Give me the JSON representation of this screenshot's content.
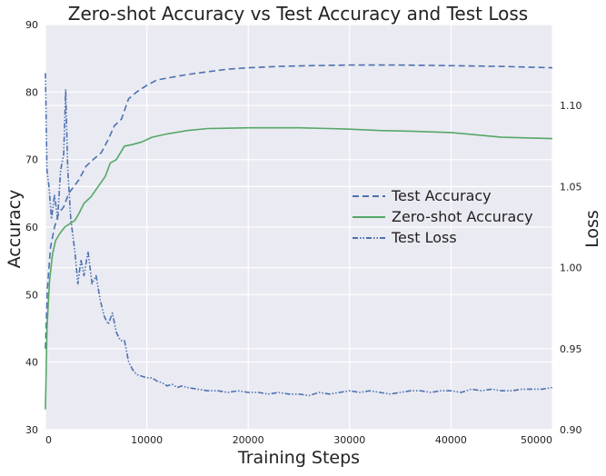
{
  "chart_data": {
    "type": "line",
    "title": "Zero-shot Accuracy vs Test Accuracy and Test Loss",
    "xlabel": "Training Steps",
    "ylabel": "Accuracy",
    "ylabel_right": "Loss",
    "xlim": [
      0,
      50000
    ],
    "ylim": [
      30,
      90
    ],
    "ylim_right": [
      0.9,
      1.15
    ],
    "x_ticks": [
      "0",
      "10000",
      "20000",
      "30000",
      "40000",
      "50000"
    ],
    "y_ticks": [
      "30",
      "40",
      "50",
      "60",
      "70",
      "80",
      "90"
    ],
    "y_right_ticks": [
      "0.90",
      "0.95",
      "1.00",
      "1.05",
      "1.10"
    ],
    "grid": true,
    "legend_position": "center-right",
    "series": [
      {
        "name": "Test Accuracy",
        "axis": "left",
        "color": "#4C72B0",
        "style": "dashed",
        "x": [
          0,
          200,
          500,
          900,
          1300,
          1800,
          2300,
          2800,
          3300,
          4000,
          4700,
          5500,
          6200,
          6800,
          7500,
          8200,
          9000,
          10000,
          11000,
          12500,
          14000,
          16000,
          18000,
          20000,
          23000,
          26000,
          30000,
          35000,
          40000,
          45000,
          50000
        ],
        "y": [
          42,
          51,
          57,
          60,
          62,
          63,
          65,
          66,
          67,
          69,
          70,
          71,
          73,
          75,
          76,
          79,
          80,
          81,
          81.8,
          82.2,
          82.6,
          83.0,
          83.4,
          83.6,
          83.8,
          83.9,
          84.0,
          84.0,
          83.9,
          83.8,
          83.6
        ]
      },
      {
        "name": "Zero-shot Accuracy",
        "axis": "left",
        "color": "#55A868",
        "style": "solid",
        "x": [
          0,
          150,
          400,
          700,
          1000,
          1400,
          1900,
          2400,
          2900,
          3300,
          3800,
          4500,
          5200,
          5900,
          6400,
          7000,
          7800,
          8500,
          9500,
          10500,
          12000,
          14000,
          16000,
          20000,
          25000,
          28000,
          30000,
          33000,
          36000,
          40000,
          45000,
          50000
        ],
        "y": [
          33,
          45,
          52,
          56,
          58,
          59,
          60,
          60.5,
          61,
          62,
          63.5,
          64.5,
          66,
          67.5,
          69.5,
          70,
          72,
          72.2,
          72.6,
          73.3,
          73.8,
          74.3,
          74.6,
          74.7,
          74.7,
          74.6,
          74.5,
          74.3,
          74.2,
          74.0,
          73.3,
          73.1
        ]
      },
      {
        "name": "Test Loss",
        "axis": "right",
        "color": "#4C72B0",
        "style": "dashdot",
        "x": [
          0,
          150,
          350,
          600,
          900,
          1200,
          1500,
          1800,
          2000,
          2200,
          2500,
          2900,
          3200,
          3500,
          3800,
          4200,
          4600,
          5000,
          5400,
          5800,
          6200,
          6600,
          7000,
          7400,
          7800,
          8200,
          8600,
          9000,
          9500,
          10000,
          10500,
          11000,
          11500,
          12000,
          12500,
          13000,
          13500,
          14000,
          15000,
          16000,
          17000,
          18000,
          19000,
          20000,
          21000,
          22000,
          23000,
          24000,
          25000,
          26000,
          27000,
          28000,
          29000,
          30000,
          31000,
          32000,
          33000,
          34000,
          35000,
          36000,
          37000,
          38000,
          39000,
          40000,
          41000,
          42000,
          43000,
          44000,
          45000,
          46000,
          47000,
          48000,
          49000,
          50000
        ],
        "y": [
          1.12,
          1.06,
          1.05,
          1.03,
          1.045,
          1.03,
          1.06,
          1.07,
          1.11,
          1.06,
          1.03,
          1.01,
          0.99,
          1.005,
          0.995,
          1.01,
          0.99,
          0.995,
          0.98,
          0.97,
          0.965,
          0.972,
          0.96,
          0.955,
          0.955,
          0.942,
          0.937,
          0.934,
          0.933,
          0.932,
          0.932,
          0.93,
          0.929,
          0.927,
          0.928,
          0.926,
          0.927,
          0.926,
          0.925,
          0.924,
          0.924,
          0.923,
          0.924,
          0.923,
          0.923,
          0.922,
          0.923,
          0.922,
          0.922,
          0.921,
          0.923,
          0.922,
          0.923,
          0.924,
          0.923,
          0.924,
          0.923,
          0.922,
          0.923,
          0.924,
          0.924,
          0.923,
          0.924,
          0.924,
          0.923,
          0.925,
          0.924,
          0.925,
          0.924,
          0.924,
          0.925,
          0.925,
          0.925,
          0.926
        ]
      }
    ]
  }
}
